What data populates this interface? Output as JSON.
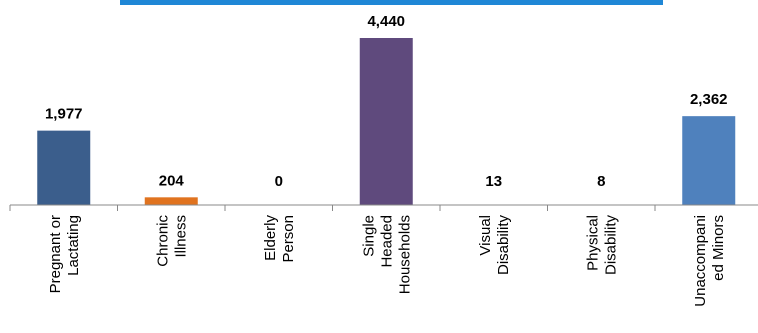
{
  "chart_data": {
    "type": "bar",
    "categories": [
      [
        "Pregnant or",
        "Lactating"
      ],
      [
        "Chronic",
        "Illness"
      ],
      [
        "Elderly",
        "Person"
      ],
      [
        "Single",
        "Headed",
        "Households"
      ],
      [
        "Visual",
        "Disability"
      ],
      [
        "Physical",
        "Disability"
      ],
      [
        "Unaccompani",
        "ed Minors"
      ]
    ],
    "values": [
      1977,
      204,
      0,
      4440,
      13,
      8,
      2362
    ],
    "value_labels": [
      "1,977",
      "204",
      "0",
      "4,440",
      "13",
      "8",
      "2,362"
    ],
    "colors": [
      "#3B5E8C",
      "#E0731F",
      "#4C7ABF",
      "#5F4A7D",
      "#4C7ABF",
      "#4C7ABF",
      "#4F81BD"
    ],
    "header_bar_color": "#1F87D6",
    "title": "",
    "xlabel": "",
    "ylabel": "",
    "ylim": [
      0,
      4440
    ],
    "grid": false,
    "legend": "none"
  }
}
